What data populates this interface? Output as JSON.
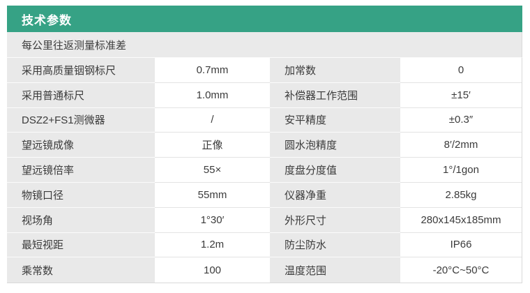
{
  "page": {
    "section_title": "技术参数",
    "table_subheader": "每公里往返测量标准差"
  },
  "colors": {
    "accent_green": "#36a285",
    "label_cell_bg": "#e9e9e9",
    "value_cell_bg": "#ffffff",
    "header_text": "#ffffff",
    "body_text": "#3b3b3b"
  },
  "table": {
    "rows": [
      {
        "label_left": "采用高质量铟钢标尺",
        "value_left": "0.7mm",
        "label_right": "加常数",
        "value_right": "0"
      },
      {
        "label_left": "采用普通标尺",
        "value_left": "1.0mm",
        "label_right": "补偿器工作范围",
        "value_right": "±15′"
      },
      {
        "label_left": "DSZ2+FS1测微器",
        "value_left": "/",
        "label_right": "安平精度",
        "value_right": "±0.3″"
      },
      {
        "label_left": "望远镜成像",
        "value_left": "正像",
        "label_right": "圆水泡精度",
        "value_right": "8′/2mm"
      },
      {
        "label_left": "望远镜倍率",
        "value_left": "55×",
        "label_right": "度盘分度值",
        "value_right": "1°/1gon"
      },
      {
        "label_left": "物镜口径",
        "value_left": "55mm",
        "label_right": "仪器净重",
        "value_right": "2.85kg"
      },
      {
        "label_left": "视场角",
        "value_left": "1°30′",
        "label_right": "外形尺寸",
        "value_right": "280x145x185mm"
      },
      {
        "label_left": "最短视距",
        "value_left": "1.2m",
        "label_right": "防尘防水",
        "value_right": "IP66"
      },
      {
        "label_left": "乘常数",
        "value_left": "100",
        "label_right": "温度范围",
        "value_right": "-20°C~50°C"
      }
    ]
  }
}
